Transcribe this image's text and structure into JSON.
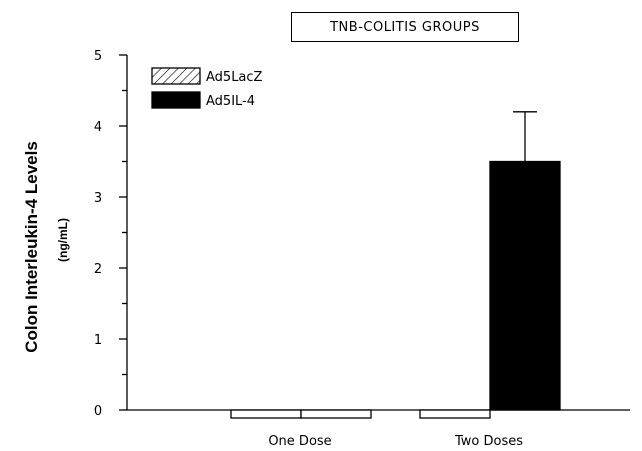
{
  "chart_data": {
    "type": "bar",
    "title": "TNB-COLITIS GROUPS",
    "ylabel": "Colon Interleukin-4 Levels",
    "yunit": "(ng/mL)",
    "xlabel": "",
    "ylim": [
      0,
      5
    ],
    "yticks": [
      "0",
      "1",
      "2",
      "3",
      "4",
      "5"
    ],
    "categories": [
      "One Dose",
      "Two Doses"
    ],
    "series": [
      {
        "name": "Ad5LacZ",
        "values": [
          0,
          0
        ],
        "errors": [
          0,
          0
        ],
        "fill": "hatch"
      },
      {
        "name": "Ad5IL-4",
        "values": [
          0,
          3.5
        ],
        "errors": [
          0,
          0.7
        ],
        "fill": "#000000"
      }
    ],
    "grid": false,
    "legend_position": "top-left"
  }
}
